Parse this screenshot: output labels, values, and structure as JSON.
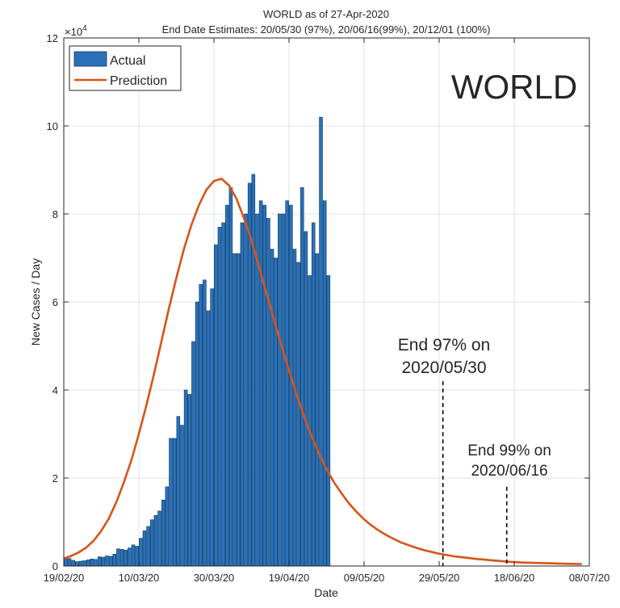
{
  "chart_data": {
    "type": "bar",
    "title_line1": "WORLD as of 27-Apr-2020",
    "title_line2": "End Date Estimates: 20/05/30 (97%), 20/06/16(99%), 20/12/01 (100%)",
    "xlabel": "Date",
    "ylabel": "New Cases / Day",
    "exponent_label": "×10",
    "exponent_power": "4",
    "big_label": "WORLD",
    "x_tick_labels": [
      "19/02/20",
      "10/03/20",
      "30/03/20",
      "19/04/20",
      "09/05/20",
      "29/05/20",
      "18/06/20",
      "08/07/20"
    ],
    "y_tick_labels": [
      "0",
      "2",
      "4",
      "6",
      "8",
      "10",
      "12"
    ],
    "xlim": [
      "2020-02-19",
      "2020-07-08"
    ],
    "ylim": [
      0,
      120000
    ],
    "grid": true,
    "legend_position": "top-left",
    "legend": [
      {
        "name": "Actual",
        "kind": "bar",
        "color": "#2a71b8"
      },
      {
        "name": "Prediction",
        "kind": "line",
        "color": "#d95319"
      }
    ],
    "actual_start_date": "2020-02-19",
    "actual_values": [
      1600,
      1700,
      1300,
      1000,
      1100,
      1200,
      1400,
      1600,
      1500,
      2100,
      2000,
      2300,
      2200,
      2700,
      3900,
      3800,
      3600,
      4100,
      4800,
      4500,
      6300,
      8000,
      9000,
      10500,
      11500,
      12500,
      15000,
      18000,
      29000,
      29000,
      34000,
      32000,
      40000,
      39000,
      51000,
      60000,
      64000,
      65000,
      58000,
      63000,
      73000,
      77000,
      78000,
      82000,
      86000,
      71000,
      71000,
      78000,
      80000,
      87000,
      89000,
      80000,
      83000,
      82000,
      79000,
      72000,
      70000,
      80000,
      80000,
      83000,
      82000,
      72000,
      69000,
      86000,
      76000,
      66000,
      78000,
      71000,
      102000,
      83000,
      66000
    ],
    "prediction_date_step_days": 2,
    "prediction_values": [
      1700,
      2300,
      3100,
      4200,
      5800,
      8000,
      10800,
      14500,
      19000,
      24000,
      30000,
      36500,
      43500,
      51000,
      58500,
      65500,
      72000,
      77500,
      82000,
      85500,
      87500,
      88000,
      86500,
      83500,
      79000,
      74000,
      68000,
      62000,
      56000,
      50000,
      44500,
      39000,
      34000,
      29500,
      25500,
      22000,
      19000,
      16500,
      14200,
      12300,
      10600,
      9200,
      8000,
      7000,
      6100,
      5300,
      4700,
      4100,
      3600,
      3200,
      2800,
      2500,
      2200,
      2000,
      1800,
      1600,
      1450,
      1300,
      1150,
      1000,
      900,
      800,
      750,
      700,
      650,
      600,
      560,
      520,
      480,
      450
    ],
    "annotations": [
      {
        "line1": "End 97% on",
        "line2": "2020/05/30",
        "date": "2020-05-30",
        "value": 50000
      },
      {
        "line1": "End 99% on",
        "line2": "2020/06/16",
        "date": "2020-06-16",
        "value": 22000
      }
    ],
    "end_markers": [
      {
        "date": "2020-05-30",
        "top_value": 42000
      },
      {
        "date": "2020-06-16",
        "top_value": 18000
      }
    ]
  },
  "colors": {
    "bar_fill": "#2a71b8",
    "bar_edge": "#0d3a66",
    "prediction_line": "#d95319",
    "grid": "#e3e3e3",
    "axis": "#262626"
  }
}
